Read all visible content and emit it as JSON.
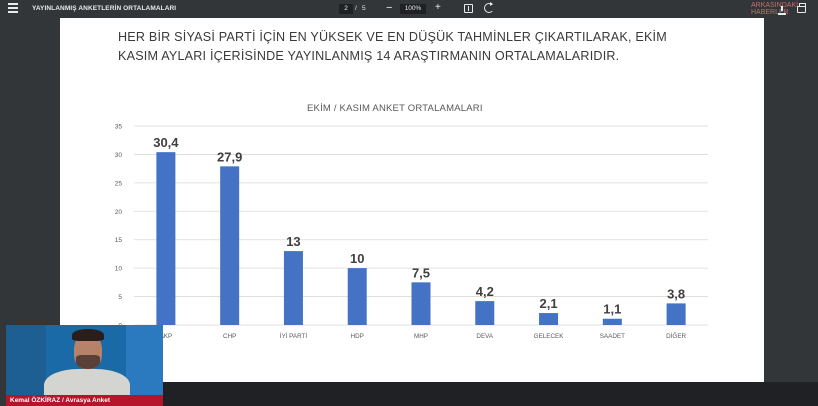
{
  "toolbar": {
    "title": "YAYINLANMIŞ ANKETLERİN ORTALAMALARI",
    "page_current": "2",
    "page_sep": "/",
    "page_total": "5",
    "zoom_minus": "−",
    "zoom": "100%",
    "zoom_plus": "+",
    "watermark": "ARKASINDAKİ HABERLER"
  },
  "slide": {
    "heading_line1": "HER BİR SİYASİ PARTİ İÇİN EN YÜKSEK VE EN DÜŞÜK TAHMİNLER ÇIKARTILARAK, EKİM",
    "heading_line2": "KASIM AYLARI İÇERİSİNDE YAYINLANMIŞ 14 ARAŞTIRMANIN ORTALAMALARIDIR."
  },
  "chart_data": {
    "type": "bar",
    "title": "EKİM / KASIM ANKET ORTALAMALARI",
    "categories": [
      "AKP",
      "CHP",
      "İYİ PARTİ",
      "HDP",
      "MHP",
      "DEVA",
      "GELECEK",
      "SAADET",
      "DİĞER"
    ],
    "values": [
      30.4,
      27.9,
      13,
      10,
      7.5,
      4.2,
      2.1,
      1.1,
      3.8
    ],
    "value_labels": [
      "30,4",
      "27,9",
      "13",
      "10",
      "7,5",
      "4,2",
      "2,1",
      "1,1",
      "3,8"
    ],
    "yticks": [
      "0",
      "5",
      "10",
      "15",
      "20",
      "25",
      "30",
      "35"
    ],
    "ylim": [
      0,
      35
    ],
    "grid": true,
    "bar_color": "#4472c4"
  },
  "webcam": {
    "caption": "Kemal ÖZKİRAZ / Avrasya Anket"
  }
}
